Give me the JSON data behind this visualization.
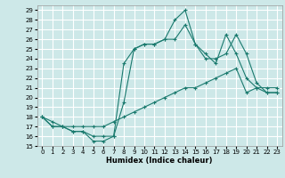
{
  "xlabel": "Humidex (Indice chaleur)",
  "background_color": "#cde8e8",
  "grid_color": "#ffffff",
  "line_color": "#1a7a6e",
  "xlim": [
    -0.5,
    23.5
  ],
  "ylim": [
    15,
    29.5
  ],
  "xticks": [
    0,
    1,
    2,
    3,
    4,
    5,
    6,
    7,
    8,
    9,
    10,
    11,
    12,
    13,
    14,
    15,
    16,
    17,
    18,
    19,
    20,
    21,
    22,
    23
  ],
  "yticks": [
    15,
    16,
    17,
    18,
    19,
    20,
    21,
    22,
    23,
    24,
    25,
    26,
    27,
    28,
    29
  ],
  "line1_x": [
    0,
    1,
    2,
    3,
    4,
    5,
    6,
    7,
    8,
    9,
    10,
    11,
    12,
    13,
    14,
    15,
    16,
    17,
    18,
    19,
    20,
    21,
    22,
    23
  ],
  "line1_y": [
    18,
    17.5,
    17,
    17,
    17,
    17,
    17,
    17.5,
    18,
    18.5,
    19,
    19.5,
    20,
    20.5,
    21,
    21,
    21.5,
    22,
    22.5,
    23,
    20.5,
    21,
    21,
    21
  ],
  "line2_x": [
    0,
    1,
    2,
    3,
    4,
    5,
    6,
    7,
    8,
    9,
    10,
    11,
    12,
    13,
    14,
    15,
    16,
    17,
    18,
    19,
    20,
    21,
    22,
    23
  ],
  "line2_y": [
    18,
    17,
    17,
    16.5,
    16.5,
    15.5,
    15.5,
    16,
    19.5,
    25,
    25.5,
    25.5,
    26,
    28,
    29,
    25.5,
    24,
    24,
    24.5,
    26.5,
    24.5,
    21.5,
    20.5,
    20.5
  ],
  "line3_x": [
    0,
    1,
    2,
    3,
    4,
    5,
    6,
    7,
    8,
    9,
    10,
    11,
    12,
    13,
    14,
    15,
    16,
    17,
    18,
    19,
    20,
    21,
    22,
    23
  ],
  "line3_y": [
    18,
    17,
    17,
    16.5,
    16.5,
    16,
    16,
    16,
    23.5,
    25,
    25.5,
    25.5,
    26,
    26,
    27.5,
    25.5,
    24.5,
    23.5,
    26.5,
    24.5,
    22,
    21,
    20.5,
    20.5
  ]
}
